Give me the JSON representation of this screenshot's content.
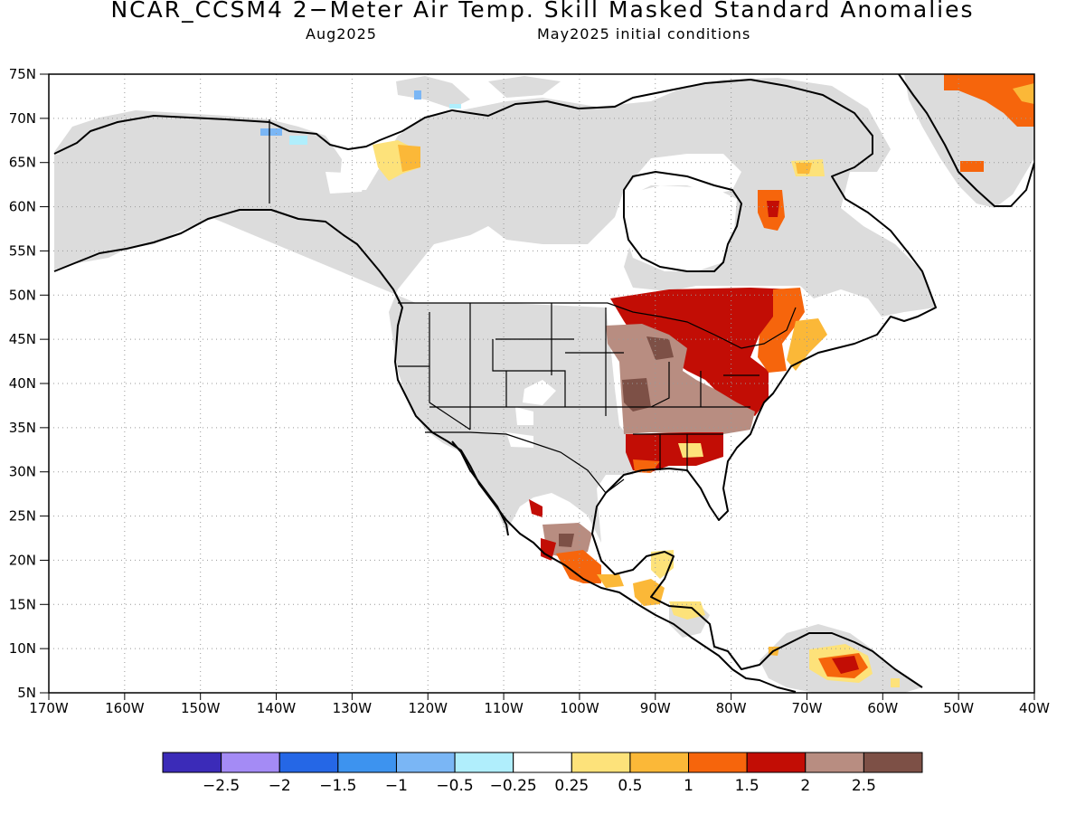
{
  "title": "NCAR_CCSM4 2−Meter Air Temp. Skill Masked Standard Anomalies",
  "subtitle_left": "Aug2025",
  "subtitle_right": "May2025 initial conditions",
  "lat_labels": [
    "75N",
    "70N",
    "65N",
    "60N",
    "55N",
    "50N",
    "45N",
    "40N",
    "35N",
    "30N",
    "25N",
    "20N",
    "15N",
    "10N",
    "5N"
  ],
  "lon_labels": [
    "170W",
    "160W",
    "150W",
    "140W",
    "130W",
    "120W",
    "110W",
    "100W",
    "90W",
    "80W",
    "70W",
    "60W",
    "50W",
    "40W"
  ],
  "colors": {
    "land_masked": "#dcdcdc",
    "coast": "#000000",
    "grid": "#999999",
    "scale": [
      "#3b2bb8",
      "#a48bf5",
      "#2567e6",
      "#3d93ef",
      "#7ab6f5",
      "#b0eefc",
      "#ffffff",
      "#fde27a",
      "#fbb838",
      "#f6650c",
      "#c20d05",
      "#b88d81",
      "#7d5046"
    ]
  },
  "colorbar": {
    "labels": [
      "−2.5",
      "−2",
      "−1.5",
      "−1",
      "−0.5",
      "−0.25",
      "0.25",
      "0.5",
      "1",
      "1.5",
      "2",
      "2.5"
    ]
  }
}
